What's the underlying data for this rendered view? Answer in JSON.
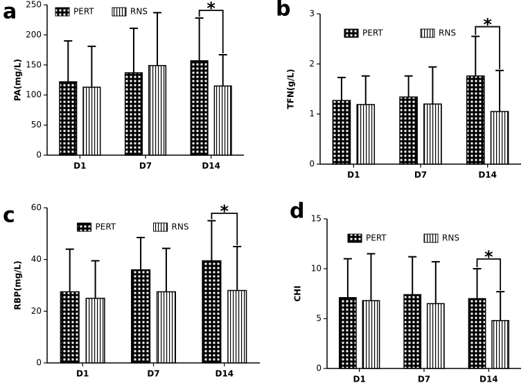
{
  "chart_data": [
    {
      "type": "bar",
      "panel_label": "a",
      "ylabel": "PA(mg/L)",
      "categories": [
        "D1",
        "D7",
        "D14"
      ],
      "series": [
        {
          "name": "PERT",
          "values": [
            122,
            137,
            157
          ],
          "errors": [
            68,
            74,
            71
          ]
        },
        {
          "name": "RNS",
          "values": [
            113,
            149,
            115
          ],
          "errors": [
            68,
            88,
            52
          ]
        }
      ],
      "ylim": [
        0,
        250
      ],
      "yticks": [
        0,
        50,
        100,
        150,
        200,
        250
      ],
      "legend": "upper left",
      "annotations": [
        "*"
      ]
    },
    {
      "type": "bar",
      "panel_label": "b",
      "ylabel": "TFN(g/L)",
      "categories": [
        "D1",
        "D7",
        "D14"
      ],
      "series": [
        {
          "name": "PERT",
          "values": [
            1.27,
            1.34,
            1.76
          ],
          "errors": [
            0.46,
            0.42,
            0.79
          ]
        },
        {
          "name": "RNS",
          "values": [
            1.19,
            1.2,
            1.05
          ],
          "errors": [
            0.57,
            0.74,
            0.82
          ]
        }
      ],
      "ylim": [
        0,
        3
      ],
      "yticks": [
        0,
        1,
        2,
        3
      ],
      "legend": "upper center",
      "annotations": [
        "*"
      ]
    },
    {
      "type": "bar",
      "panel_label": "c",
      "ylabel": "RBP(mg/L)",
      "categories": [
        "D1",
        "D7",
        "D14"
      ],
      "series": [
        {
          "name": "PERT",
          "values": [
            27.5,
            36,
            39.5
          ],
          "errors": [
            16.5,
            12.5,
            15.5
          ]
        },
        {
          "name": "RNS",
          "values": [
            25,
            27.5,
            28
          ],
          "errors": [
            14.5,
            16.8,
            17
          ]
        }
      ],
      "ylim": [
        0,
        60
      ],
      "yticks": [
        0,
        20,
        40,
        60
      ],
      "legend": "upper center",
      "annotations": [
        "*"
      ]
    },
    {
      "type": "bar",
      "panel_label": "d",
      "ylabel": "CHI",
      "categories": [
        "D1",
        "D7",
        "D14"
      ],
      "series": [
        {
          "name": "PERT",
          "values": [
            7.1,
            7.4,
            7.0
          ],
          "errors": [
            3.9,
            3.8,
            3.0
          ]
        },
        {
          "name": "RNS",
          "values": [
            6.8,
            6.5,
            4.8
          ],
          "errors": [
            4.7,
            4.2,
            2.9
          ]
        }
      ],
      "ylim": [
        0,
        15
      ],
      "yticks": [
        0,
        5,
        10,
        15
      ],
      "legend": "upper center",
      "annotations": [
        "*"
      ]
    }
  ]
}
